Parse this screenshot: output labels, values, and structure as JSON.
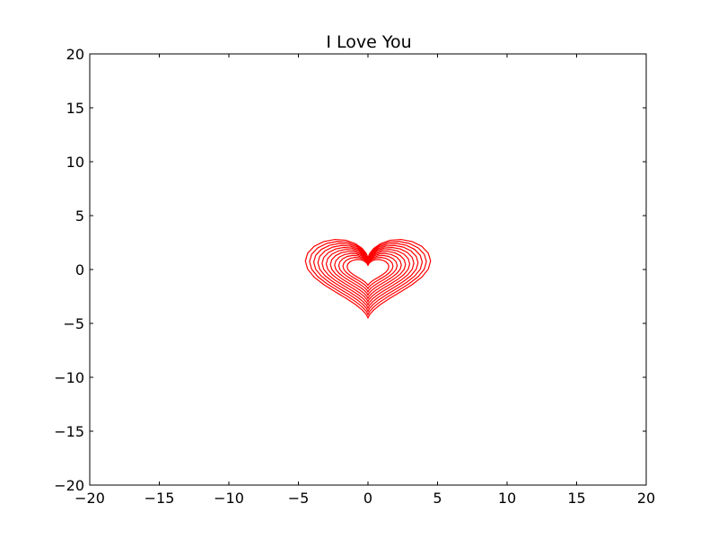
{
  "chart_data": {
    "type": "line",
    "title": "I Love You",
    "xlabel": "",
    "ylabel": "",
    "xlim": [
      -20,
      20
    ],
    "ylim": [
      -20,
      20
    ],
    "xticks": [
      -20,
      -15,
      -10,
      -5,
      0,
      5,
      10,
      15,
      20
    ],
    "yticks": [
      -20,
      -15,
      -10,
      -5,
      0,
      5,
      10,
      15,
      20
    ],
    "xtick_labels": [
      "−20",
      "−15",
      "−10",
      "−5",
      "0",
      "5",
      "10",
      "15",
      "20"
    ],
    "ytick_labels": [
      "−20",
      "−15",
      "−10",
      "−5",
      "0",
      "5",
      "10",
      "15",
      "20"
    ],
    "grid": false,
    "line_color": "#ff0000",
    "curve_scales": [
      1.5,
      1.8,
      2.1,
      2.4,
      2.7,
      3.0,
      3.3,
      3.6,
      3.9,
      4.2,
      4.5
    ],
    "curve_x_factor": 1.13,
    "series_note_values": {
      "outer_curve_max_x": 4.8,
      "outer_curve_min_y": -5.0,
      "outer_curve_max_y": 3.5
    }
  }
}
